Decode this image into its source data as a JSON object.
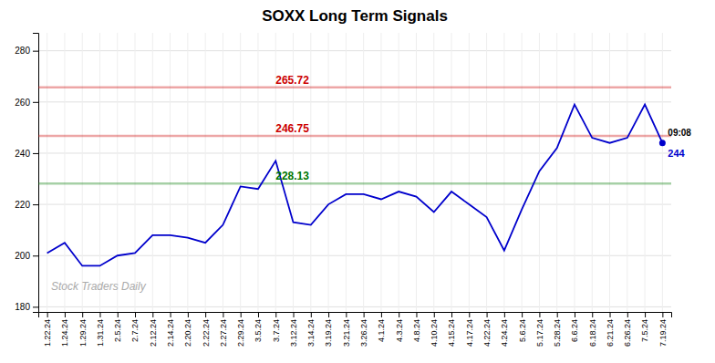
{
  "chart_data": {
    "type": "line",
    "title": "SOXX Long Term Signals",
    "categories": [
      "1.22.24",
      "1.24.24",
      "1.29.24",
      "1.31.24",
      "2.5.24",
      "2.7.24",
      "2.12.24",
      "2.14.24",
      "2.20.24",
      "2.22.24",
      "2.27.24",
      "2.29.24",
      "3.5.24",
      "3.7.24",
      "3.12.24",
      "3.14.24",
      "3.19.24",
      "3.21.24",
      "3.26.24",
      "4.1.24",
      "4.3.24",
      "4.8.24",
      "4.10.24",
      "4.15.24",
      "4.17.24",
      "4.22.24",
      "4.24.24",
      "5.6.24",
      "5.17.24",
      "5.28.24",
      "6.6.24",
      "6.18.24",
      "6.21.24",
      "6.26.24",
      "7.5.24",
      "7.19.24"
    ],
    "values": [
      201,
      205,
      196,
      196,
      200,
      201,
      208,
      208,
      207,
      205,
      212,
      227,
      226,
      237,
      213,
      212,
      220,
      224,
      224,
      222,
      225,
      223,
      217,
      225,
      220,
      215,
      202,
      218,
      233,
      242,
      259,
      246,
      244,
      246,
      259,
      244
    ],
    "color": "#0000cc",
    "reference_lines": [
      {
        "value": 265.72,
        "color": "#cc0000"
      },
      {
        "value": 246.75,
        "color": "#cc0000"
      },
      {
        "value": 228.13,
        "color": "#007700"
      }
    ],
    "annotations": [
      "09:08",
      "244"
    ],
    "watermark": "Stock Traders Daily",
    "ylim": [
      178,
      287
    ],
    "yticks": [
      180,
      200,
      220,
      240,
      260,
      280
    ],
    "grid": true
  }
}
